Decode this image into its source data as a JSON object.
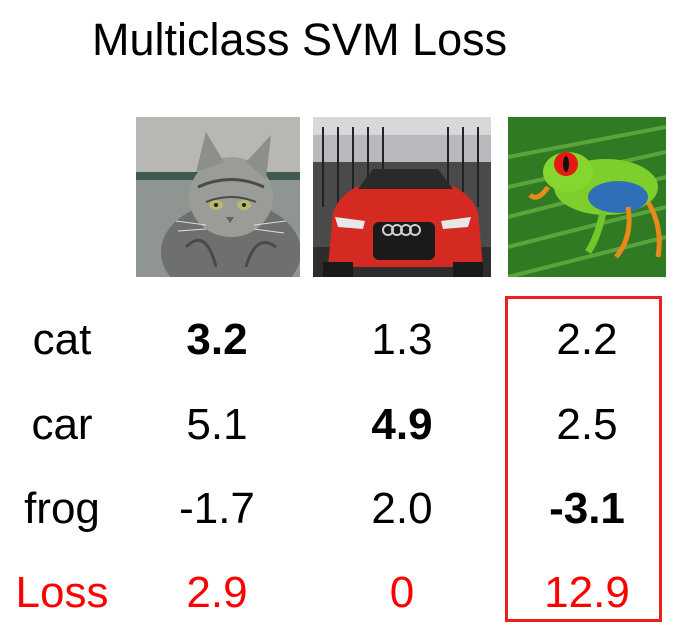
{
  "title": "Multiclass SVM Loss",
  "rows": [
    {
      "label": "cat",
      "values": [
        "3.2",
        "1.3",
        "2.2"
      ]
    },
    {
      "label": "car",
      "values": [
        "5.1",
        "4.9",
        "2.5"
      ]
    },
    {
      "label": "frog",
      "values": [
        "-1.7",
        "2.0",
        "-3.1"
      ]
    }
  ],
  "loss": {
    "label": "Loss",
    "values": [
      "2.9",
      "0",
      "12.9"
    ]
  },
  "images": [
    "cat-photo",
    "car-photo",
    "frog-photo"
  ],
  "colors": {
    "loss_text": "#ff0000",
    "highlight_border": "#e8221b"
  }
}
